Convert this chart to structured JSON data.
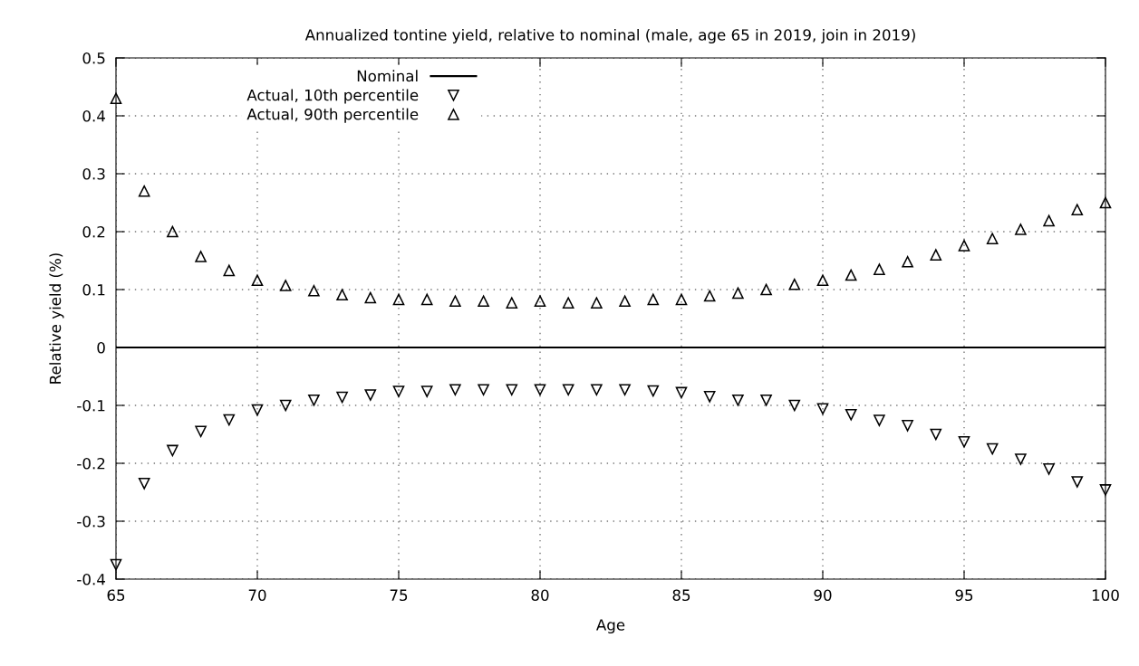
{
  "chart_data": {
    "type": "scatter",
    "title": "Annualized tontine yield, relative to nominal (male, age 65 in 2019, join in 2019)",
    "xlabel": "Age",
    "ylabel": "Relative yield (%)",
    "x": [
      65,
      66,
      67,
      68,
      69,
      70,
      71,
      72,
      73,
      74,
      75,
      76,
      77,
      78,
      79,
      80,
      81,
      82,
      83,
      84,
      85,
      86,
      87,
      88,
      89,
      90,
      91,
      92,
      93,
      94,
      95,
      96,
      97,
      98,
      99,
      100
    ],
    "series": [
      {
        "name": "Nominal",
        "type": "line",
        "color": "#000000",
        "marker": "none",
        "line_style": "solid",
        "x": [
          65,
          100
        ],
        "values": [
          0,
          0
        ]
      },
      {
        "name": "Actual, 10th percentile",
        "color": "#000000",
        "marker": "triangle_down",
        "values": [
          -0.375,
          -0.235,
          -0.178,
          -0.145,
          -0.125,
          -0.108,
          -0.1,
          -0.091,
          -0.086,
          -0.082,
          -0.076,
          -0.076,
          -0.073,
          -0.073,
          -0.073,
          -0.073,
          -0.073,
          -0.073,
          -0.073,
          -0.075,
          -0.078,
          -0.085,
          -0.091,
          -0.091,
          -0.1,
          -0.106,
          -0.116,
          -0.126,
          -0.135,
          -0.15,
          -0.163,
          -0.175,
          -0.193,
          -0.21,
          -0.232,
          -0.246
        ]
      },
      {
        "name": "Actual, 90th percentile",
        "color": "#000000",
        "marker": "triangle",
        "values": [
          0.43,
          0.27,
          0.2,
          0.157,
          0.133,
          0.116,
          0.107,
          0.098,
          0.091,
          0.086,
          0.083,
          0.083,
          0.08,
          0.08,
          0.077,
          0.08,
          0.077,
          0.077,
          0.08,
          0.083,
          0.083,
          0.089,
          0.094,
          0.1,
          0.109,
          0.116,
          0.125,
          0.135,
          0.148,
          0.16,
          0.176,
          0.188,
          0.204,
          0.219,
          0.238,
          0.25
        ]
      }
    ],
    "xlim": [
      65,
      100
    ],
    "xticks": [
      65,
      70,
      75,
      80,
      85,
      90,
      95,
      100
    ],
    "ylim": [
      -0.4,
      0.5
    ],
    "yticks": [
      -0.4,
      -0.3,
      -0.2,
      -0.1,
      0,
      0.1,
      0.2,
      0.3,
      0.4,
      0.5
    ],
    "grid": true,
    "legend": "top left"
  }
}
